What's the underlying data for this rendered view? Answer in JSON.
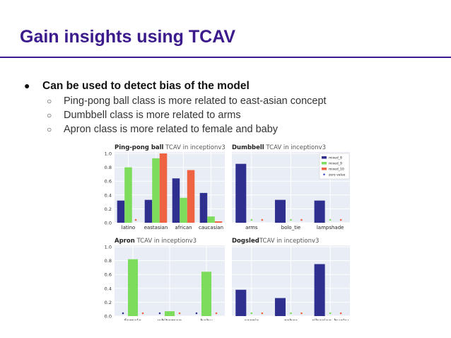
{
  "slide": {
    "title": "Gain insights using TCAV",
    "bullet": "Can be used to detect bias of the model",
    "subbullets": [
      "Ping-pong ball class is more related to east-asian concept",
      "Dumbbell class is more related to arms",
      "Apron class is more related to female and baby"
    ],
    "bullet_symbol": "●",
    "sub_symbol": "○"
  },
  "colors": {
    "title": "#3b1a8c",
    "panel_bg": "#e9edf5",
    "mixed_8": "#2e2f8f",
    "mixed_9": "#7ddc5c",
    "mixed_10": "#ee6442",
    "zero": "#4a4fc2"
  },
  "chart_data": [
    {
      "type": "bar",
      "title_bold": "Ping-pong ball",
      "title_rest": " TCAV in inceptionv3",
      "categories": [
        "latino",
        "eastasian",
        "african",
        "caucasian"
      ],
      "series": [
        {
          "name": "mixed_8",
          "values": [
            0.32,
            0.33,
            0.64,
            0.43
          ]
        },
        {
          "name": "mixed_9",
          "values": [
            0.8,
            0.93,
            0.36,
            0.09
          ]
        },
        {
          "name": "mixed_10",
          "values": [
            0.0,
            1.0,
            0.76,
            0.02
          ]
        }
      ],
      "ylim": [
        0,
        1.0
      ],
      "yticks": [
        "0.0",
        "0.2",
        "0.4",
        "0.6",
        "0.8",
        "1.0"
      ],
      "legend": "none"
    },
    {
      "type": "bar",
      "title_bold": "Dumbbell",
      "title_rest": " TCAV in inceptionv3",
      "categories": [
        "arms",
        "bolo_tie",
        "lampshade"
      ],
      "series": [
        {
          "name": "mixed_8",
          "values": [
            0.85,
            0.33,
            0.32
          ]
        },
        {
          "name": "mixed_9",
          "values": [
            0,
            0,
            0
          ]
        },
        {
          "name": "mixed_10",
          "values": [
            0,
            0,
            0
          ]
        }
      ],
      "ylim": [
        0,
        1.0
      ],
      "yticks": [],
      "legend": "top-right",
      "legend_entries": [
        "mixed_8",
        "mixed_9",
        "mixed_10",
        "zero value"
      ]
    },
    {
      "type": "bar",
      "title_bold": "Apron",
      "title_rest": " TCAV in inceptionv3",
      "categories": [
        "female",
        "whiteman",
        "baby"
      ],
      "series": [
        {
          "name": "mixed_8",
          "values": [
            0,
            0,
            0
          ]
        },
        {
          "name": "mixed_9",
          "values": [
            0.82,
            0.07,
            0.64
          ]
        },
        {
          "name": "mixed_10",
          "values": [
            0,
            0,
            0
          ]
        }
      ],
      "ylim": [
        0,
        1.0
      ],
      "yticks": [
        "0.0",
        "0.2",
        "0.4",
        "0.6",
        "0.8",
        "1.0"
      ],
      "legend": "none"
    },
    {
      "type": "bar",
      "title_bold": "Dogsled",
      "title_rest": "TCAV in inceptionv3",
      "categories": [
        "corgis",
        "zebra",
        "siberian_husky"
      ],
      "series": [
        {
          "name": "mixed_8",
          "values": [
            0.38,
            0.26,
            0.75
          ]
        },
        {
          "name": "mixed_9",
          "values": [
            0,
            0,
            0
          ]
        },
        {
          "name": "mixed_10",
          "values": [
            0,
            0,
            0
          ]
        }
      ],
      "ylim": [
        0,
        1.0
      ],
      "yticks": [],
      "legend": "none"
    }
  ]
}
